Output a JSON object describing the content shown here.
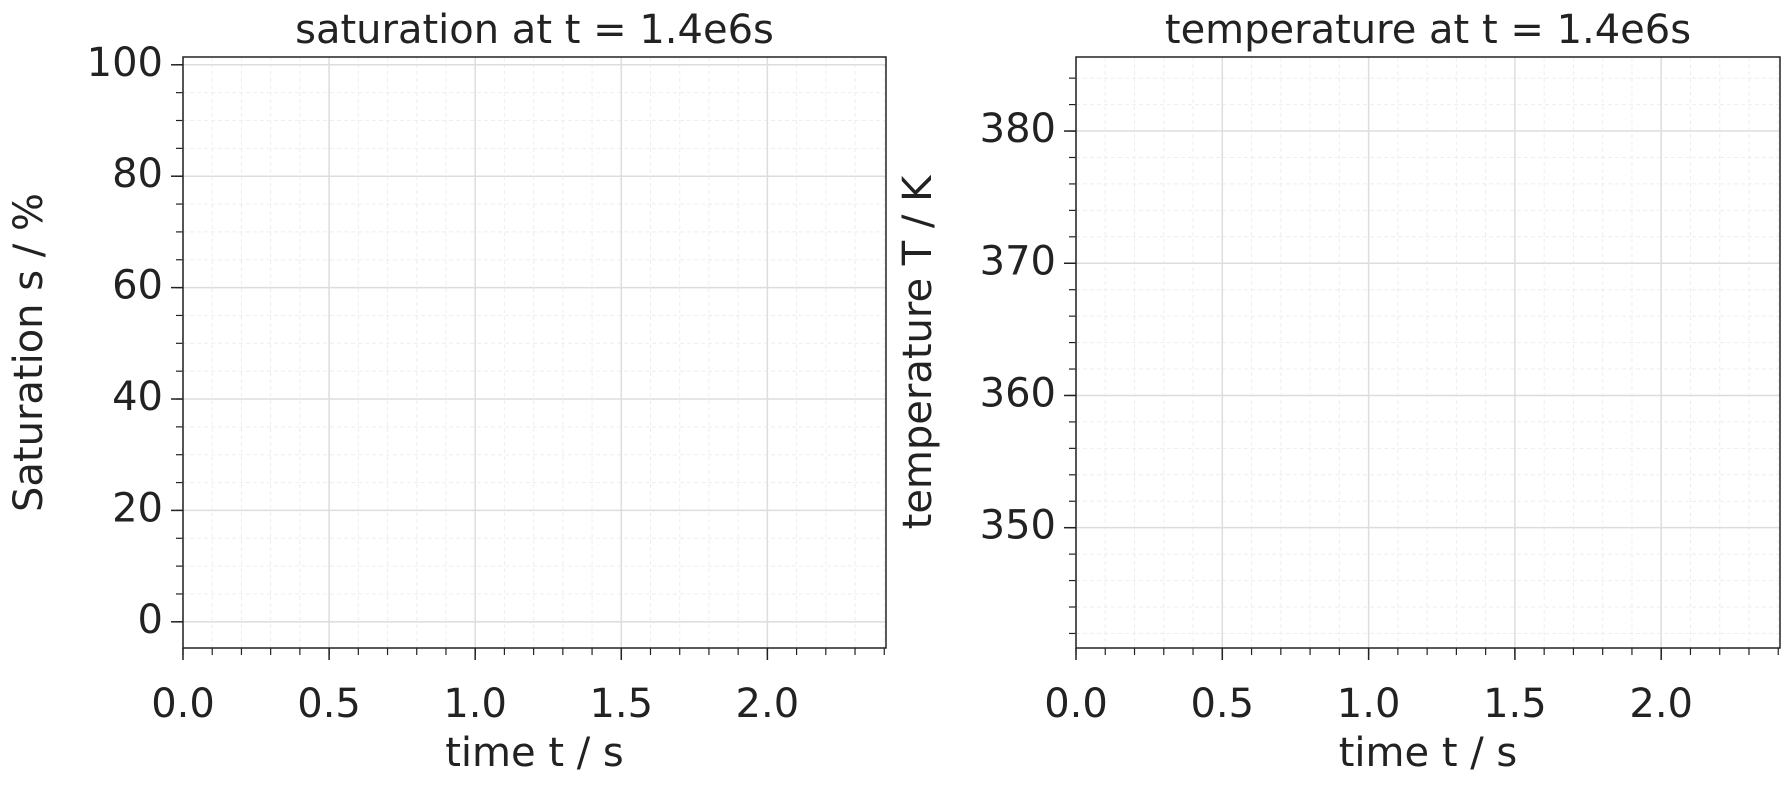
{
  "chart_data": [
    {
      "type": "line",
      "title": "saturation at t = 1.4e6s",
      "xlabel": "time t / s",
      "ylabel": "Saturation s / %",
      "series": [],
      "xlim": [
        0,
        2.406
      ],
      "xticks": [
        {
          "value": 0,
          "label": "0.0"
        },
        0.5,
        {
          "value": 1,
          "label": "1.0"
        },
        1.5,
        {
          "value": 2,
          "label": "2.0"
        }
      ],
      "ylim": [
        -4.7,
        101.4
      ],
      "yticks": [
        0,
        20,
        40,
        60,
        80,
        100
      ],
      "xminor": 0.1,
      "yminor": 5,
      "grid": true,
      "minor_grid": true
    },
    {
      "type": "line",
      "title": "temperature at t = 1.4e6s",
      "xlabel": "time t / s",
      "ylabel": "temperature T / K",
      "series": [],
      "xlim": [
        0,
        2.406
      ],
      "xticks": [
        {
          "value": 0,
          "label": "0.0"
        },
        0.5,
        {
          "value": 1,
          "label": "1.0"
        },
        1.5,
        {
          "value": 2,
          "label": "2.0"
        }
      ],
      "ylim": [
        340.9,
        385.6
      ],
      "yticks": [
        350,
        360,
        370,
        380
      ],
      "xminor": 0.1,
      "yminor": 2,
      "grid": true,
      "minor_grid": true
    }
  ]
}
